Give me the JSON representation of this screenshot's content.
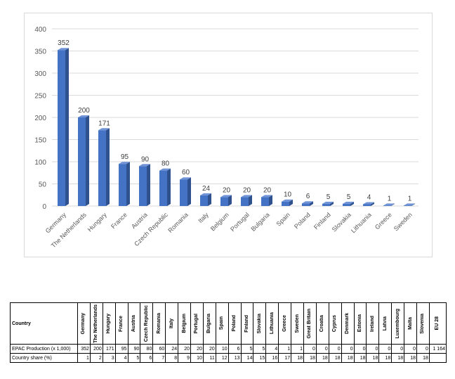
{
  "chart_data": {
    "type": "bar",
    "categories": [
      "Germany",
      "The Netherlands",
      "Hungary",
      "France",
      "Austria",
      "Czech Republic",
      "Romania",
      "Italy",
      "Belgium",
      "Portugal",
      "Bulgaria",
      "Spain",
      "Poland",
      "Finland",
      "Slovakia",
      "Lithuania",
      "Greece",
      "Sweden"
    ],
    "values": [
      352,
      200,
      171,
      95,
      90,
      80,
      60,
      24,
      20,
      20,
      20,
      10,
      6,
      5,
      5,
      4,
      1,
      1
    ],
    "ylim": [
      0,
      400
    ],
    "yticks": [
      0,
      50,
      100,
      150,
      200,
      250,
      300,
      350,
      400
    ],
    "grid": true,
    "bar_color": "#4472c4",
    "bar_side_color": "#2f528f",
    "bar_top_color": "#6f93d6"
  },
  "table": {
    "corner_label": "Country",
    "columns": [
      "Germany",
      "The Netherlands",
      "Hungary",
      "France",
      "Austria",
      "Czech Republic",
      "Romania",
      "Italy",
      "Belgium",
      "Portugal",
      "Bulgaria",
      "Spain",
      "Poland",
      "Finland",
      "Slovakia",
      "Lithuania",
      "Greece",
      "Sweden",
      "Great Britain",
      "Croatia",
      "Cyprus",
      "Denmark",
      "Estonia",
      "Ireland",
      "Latvia",
      "Luxembourg",
      "Malta",
      "Slovenia",
      "EU 28"
    ],
    "rows": [
      {
        "label": "EPAC Production (x 1,000)",
        "values": [
          "352",
          "200",
          "171",
          "95",
          "90",
          "80",
          "60",
          "24",
          "20",
          "20",
          "20",
          "10",
          "6",
          "5",
          "5",
          "4",
          "1",
          "1",
          "0",
          "0",
          "0",
          "0",
          "0",
          "0",
          "0",
          "0",
          "0",
          "0",
          "1 164"
        ]
      },
      {
        "label": "Country share (%)",
        "values": [
          "1",
          "2",
          "3",
          "4",
          "5",
          "6",
          "7",
          "8",
          "9",
          "10",
          "11",
          "12",
          "13",
          "14",
          "15",
          "16",
          "17",
          "18",
          "18",
          "18",
          "18",
          "18",
          "18",
          "18",
          "18",
          "18",
          "18",
          "18",
          ""
        ]
      }
    ]
  }
}
